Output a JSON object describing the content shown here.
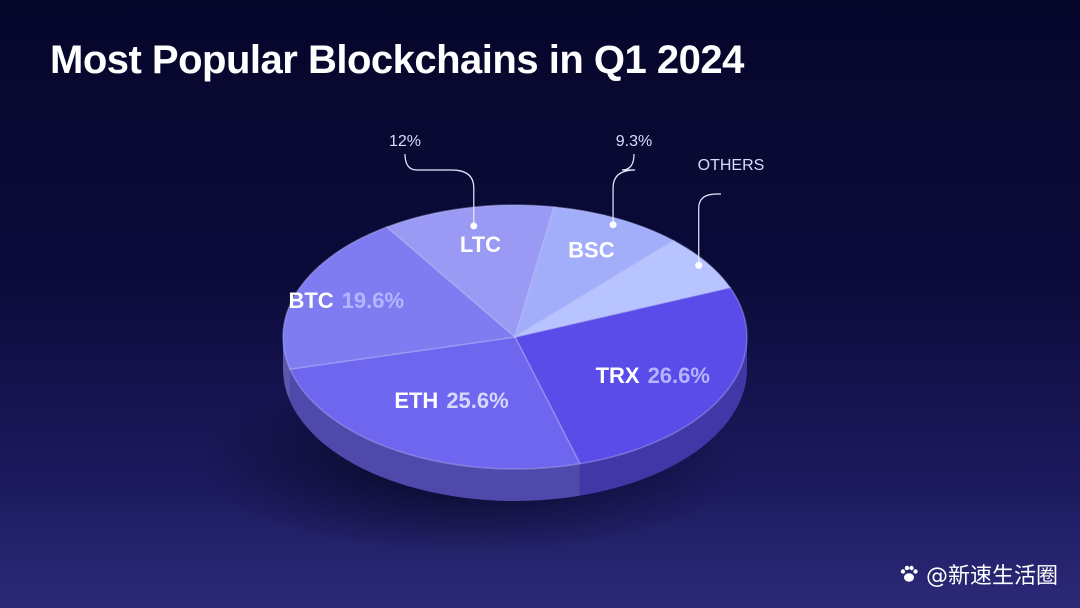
{
  "chart_data": {
    "type": "pie",
    "title": "Most Popular Blockchains in Q1 2024",
    "slices": [
      {
        "name": "TRX",
        "value": 26.6,
        "value_label": "26.6%",
        "color": "#5a4ce8"
      },
      {
        "name": "ETH",
        "value": 25.6,
        "value_label": "25.6%",
        "color": "#6e66ee"
      },
      {
        "name": "BTC",
        "value": 19.6,
        "value_label": "19.6%",
        "color": "#7f7cf2"
      },
      {
        "name": "LTC",
        "value": 12,
        "value_label": "12%",
        "color": "#9a9af5"
      },
      {
        "name": "BSC",
        "value": 9.3,
        "value_label": "9.3%",
        "color": "#a3aefb"
      },
      {
        "name": "OTHERS",
        "value": 6.9,
        "value_label": "",
        "color": "#b7c4ff"
      }
    ],
    "legend": "none"
  },
  "watermark": {
    "text": "@新速生活圈"
  },
  "colors": {
    "background_top": "#06062b",
    "background_bottom": "#2c2a78",
    "title": "#ffffff",
    "callout_text": "#d8dcff",
    "value_text_dim": "#aab0ff"
  }
}
